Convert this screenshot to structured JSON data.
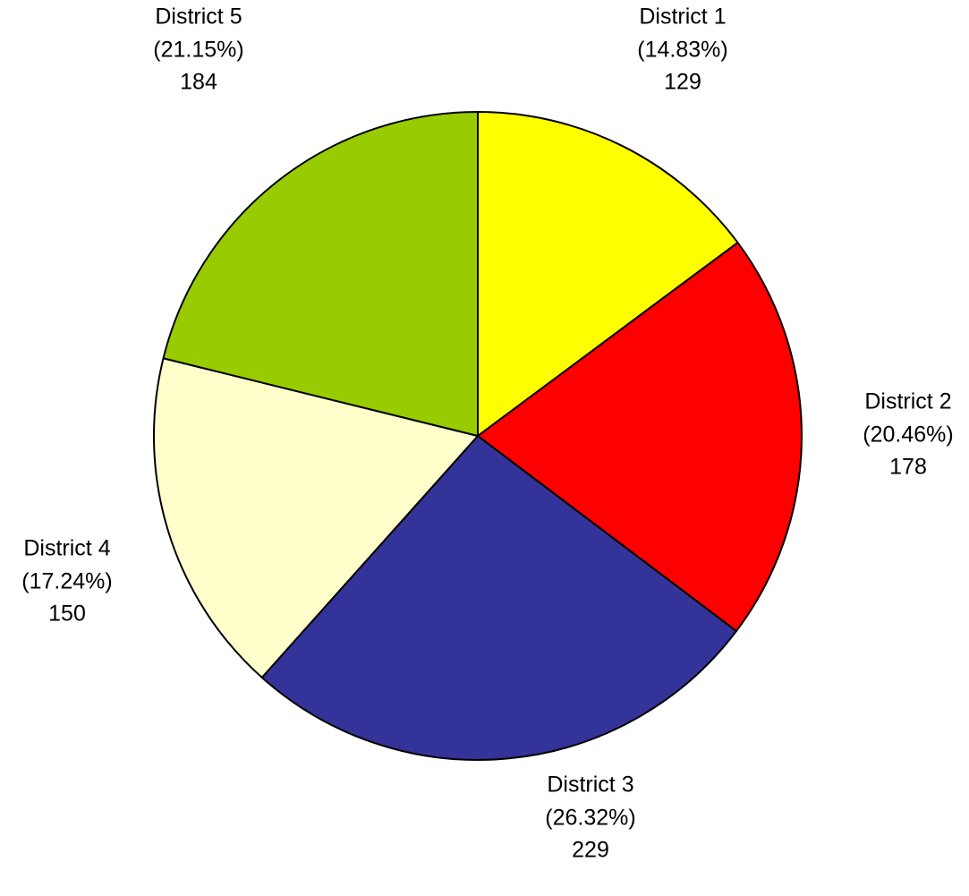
{
  "chart_data": {
    "type": "pie",
    "categories": [
      "District 1",
      "District 2",
      "District 3",
      "District 4",
      "District 5"
    ],
    "values": [
      129,
      178,
      229,
      150,
      184
    ],
    "percent_labels": [
      "(14.83%)",
      "(20.46%)",
      "(26.32%)",
      "(17.24%)",
      "(21.15%)"
    ],
    "colors": [
      "#ffff00",
      "#ff0000",
      "#333399",
      "#ffffcc",
      "#99cc00"
    ]
  }
}
